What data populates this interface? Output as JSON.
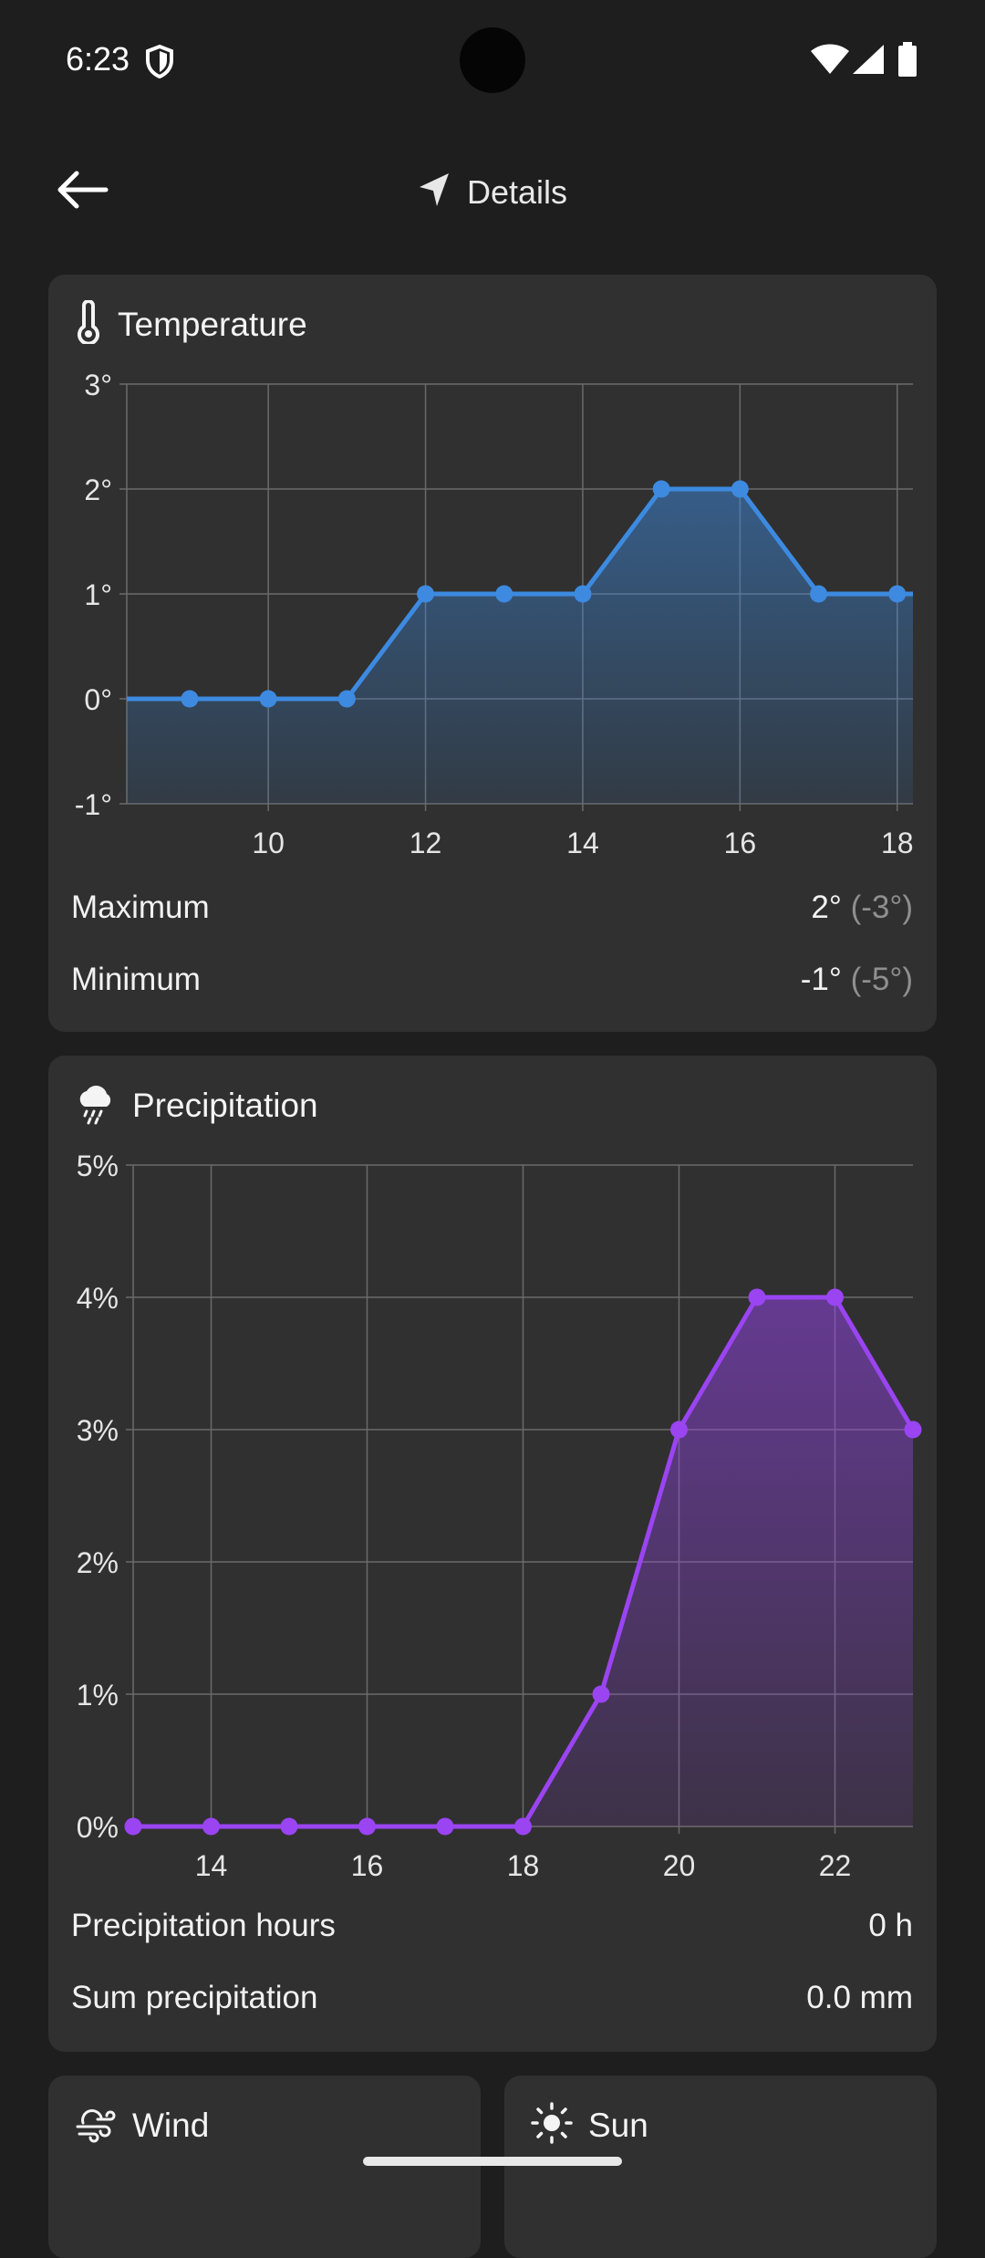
{
  "status_bar": {
    "time": "6:23"
  },
  "app_bar": {
    "title": "Details",
    "back_icon": "arrow-left-icon",
    "title_icon": "navigation-arrow-icon"
  },
  "temperature": {
    "title": "Temperature",
    "icon": "thermometer-icon",
    "max_label": "Maximum",
    "max_value": "2°",
    "max_secondary": "(-3°)",
    "min_label": "Minimum",
    "min_value": "-1°",
    "min_secondary": "(-5°)"
  },
  "precipitation": {
    "title": "Precipitation",
    "icon": "cloud-rain-icon",
    "hours_label": "Precipitation hours",
    "hours_value": "0 h",
    "sum_label": "Sum precipitation",
    "sum_value": "0.0 mm"
  },
  "wind": {
    "title": "Wind",
    "icon": "wind-icon"
  },
  "sun": {
    "title": "Sun",
    "icon": "sun-icon"
  },
  "colors": {
    "temperature_line": "#3d8ae0",
    "precipitation_line": "#9a44f2"
  },
  "chart_data": [
    {
      "type": "area",
      "x": [
        9,
        10,
        11,
        12,
        13,
        14,
        15,
        16,
        17,
        18
      ],
      "values": [
        0,
        0,
        0,
        1,
        1,
        1,
        2,
        2,
        1,
        1
      ],
      "xlim": [
        8.2,
        18.2
      ],
      "ylim": [
        -1,
        3
      ],
      "x_ticks": [
        10,
        12,
        14,
        16,
        18
      ],
      "x_tick_labels": [
        "10",
        "12",
        "14",
        "16",
        "18"
      ],
      "y_ticks": [
        -1,
        0,
        1,
        2,
        3
      ],
      "y_tick_labels": [
        "-1°",
        "0°",
        "1°",
        "2°",
        "3°"
      ],
      "grid": true,
      "color": "#3d8ae0"
    },
    {
      "type": "area",
      "x": [
        13,
        14,
        15,
        16,
        17,
        18,
        19,
        20,
        21,
        22,
        23
      ],
      "values": [
        0,
        0,
        0,
        0,
        0,
        0,
        1,
        3,
        4,
        4,
        3
      ],
      "xlim": [
        13,
        23
      ],
      "ylim": [
        0,
        5
      ],
      "x_ticks": [
        14,
        16,
        18,
        20,
        22
      ],
      "x_tick_labels": [
        "14",
        "16",
        "18",
        "20",
        "22"
      ],
      "y_ticks": [
        0,
        1,
        2,
        3,
        4,
        5
      ],
      "y_tick_labels": [
        "0%",
        "1%",
        "2%",
        "3%",
        "4%",
        "5%"
      ],
      "grid": true,
      "color": "#9a44f2"
    }
  ]
}
